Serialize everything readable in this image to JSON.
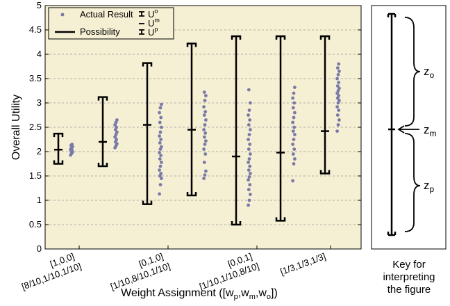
{
  "chart_data": {
    "type": "scatter",
    "xlabel": "Weight Assignment ([w",
    "xlabel_sub1": "p",
    "xlabel_mid1": ",w",
    "xlabel_sub2": "m",
    "xlabel_mid2": ",w",
    "xlabel_sub3": "o",
    "xlabel_end": "])",
    "ylabel": "Overall Utility",
    "ylim": [
      0,
      5
    ],
    "yticks": [
      "0",
      "0.5",
      "1",
      "1.5",
      "2",
      "2.5",
      "3",
      "3.5",
      "4",
      "4.5",
      "5"
    ],
    "grid": "horizontal dashed",
    "background": "#f5efd3",
    "point_color": "#7a7aa8",
    "categories": [
      {
        "line1": "[1,0,0]",
        "line2": "[8/10,1/10,1/10]"
      },
      {
        "line1": "[0,1,0]",
        "line2": "[1/10,8/10,1/10]"
      },
      {
        "line1": "[0,0,1]",
        "line2": "[1/10,1/10,8/10]"
      },
      {
        "line1": "[1/3,1/3,1/3]",
        "line2": ""
      }
    ],
    "possibility": [
      {
        "o": 2.37,
        "m": 2.04,
        "p": 1.75
      },
      {
        "o": 3.12,
        "m": 2.2,
        "p": 1.7
      },
      {
        "o": 3.82,
        "m": 2.55,
        "p": 0.92
      },
      {
        "o": 4.22,
        "m": 2.45,
        "p": 1.1
      },
      {
        "o": 4.37,
        "m": 1.9,
        "p": 0.5
      },
      {
        "o": 4.37,
        "m": 1.98,
        "p": 0.58
      },
      {
        "o": 4.37,
        "m": 2.42,
        "p": 1.55
      }
    ],
    "actual_results": [
      [
        1.93,
        1.96,
        1.99,
        2.01,
        2.03,
        2.05,
        2.07,
        2.1,
        2.13,
        2.15
      ],
      [
        2.08,
        2.12,
        2.16,
        2.2,
        2.25,
        2.3,
        2.35,
        2.4,
        2.45,
        2.5,
        2.55,
        2.6,
        2.65
      ],
      [
        1.13,
        1.32,
        1.45,
        1.5,
        1.55,
        1.62,
        1.7,
        1.78,
        1.85,
        1.92,
        1.98,
        2.05,
        2.1,
        2.18,
        2.25,
        2.32,
        2.4,
        2.5,
        2.6,
        2.7,
        2.8,
        2.9,
        2.97
      ],
      [
        1.45,
        1.52,
        1.6,
        1.78,
        1.95,
        2.05,
        2.15,
        2.22,
        2.3,
        2.38,
        2.45,
        2.55,
        2.65,
        2.75,
        2.82,
        2.92,
        3.05,
        3.15,
        3.22
      ],
      [
        0.9,
        1.0,
        1.12,
        1.22,
        1.32,
        1.42,
        1.48,
        1.55,
        1.62,
        1.7,
        1.78,
        1.85,
        1.95,
        2.05,
        2.15,
        2.25,
        2.35,
        2.45,
        2.55,
        2.65,
        2.75,
        2.85,
        3.0,
        3.27
      ],
      [
        1.4,
        1.75,
        1.85,
        1.95,
        2.05,
        2.15,
        2.25,
        2.35,
        2.42,
        2.5,
        2.6,
        2.7,
        2.8,
        2.9,
        3.0,
        3.1,
        3.2,
        3.32
      ],
      [
        2.42,
        2.55,
        2.65,
        2.75,
        2.85,
        2.92,
        3.0,
        3.05,
        3.1,
        3.15,
        3.2,
        3.25,
        3.3,
        3.35,
        3.42,
        3.5,
        3.58,
        3.65,
        3.72,
        3.8
      ]
    ],
    "legend": {
      "actual": "Actual Result",
      "possibility": "Possibility",
      "u_o": "U",
      "u_o_sup": "o",
      "u_m": "U",
      "u_m_sup": "m",
      "u_p": "U",
      "u_p_sup": "p"
    }
  },
  "key": {
    "zo": "z",
    "zo_sub": "o",
    "zm": "z",
    "zm_sub": "m",
    "zp": "z",
    "zp_sub": "p",
    "caption": [
      "Key for",
      "interpreting",
      "the figure"
    ]
  }
}
